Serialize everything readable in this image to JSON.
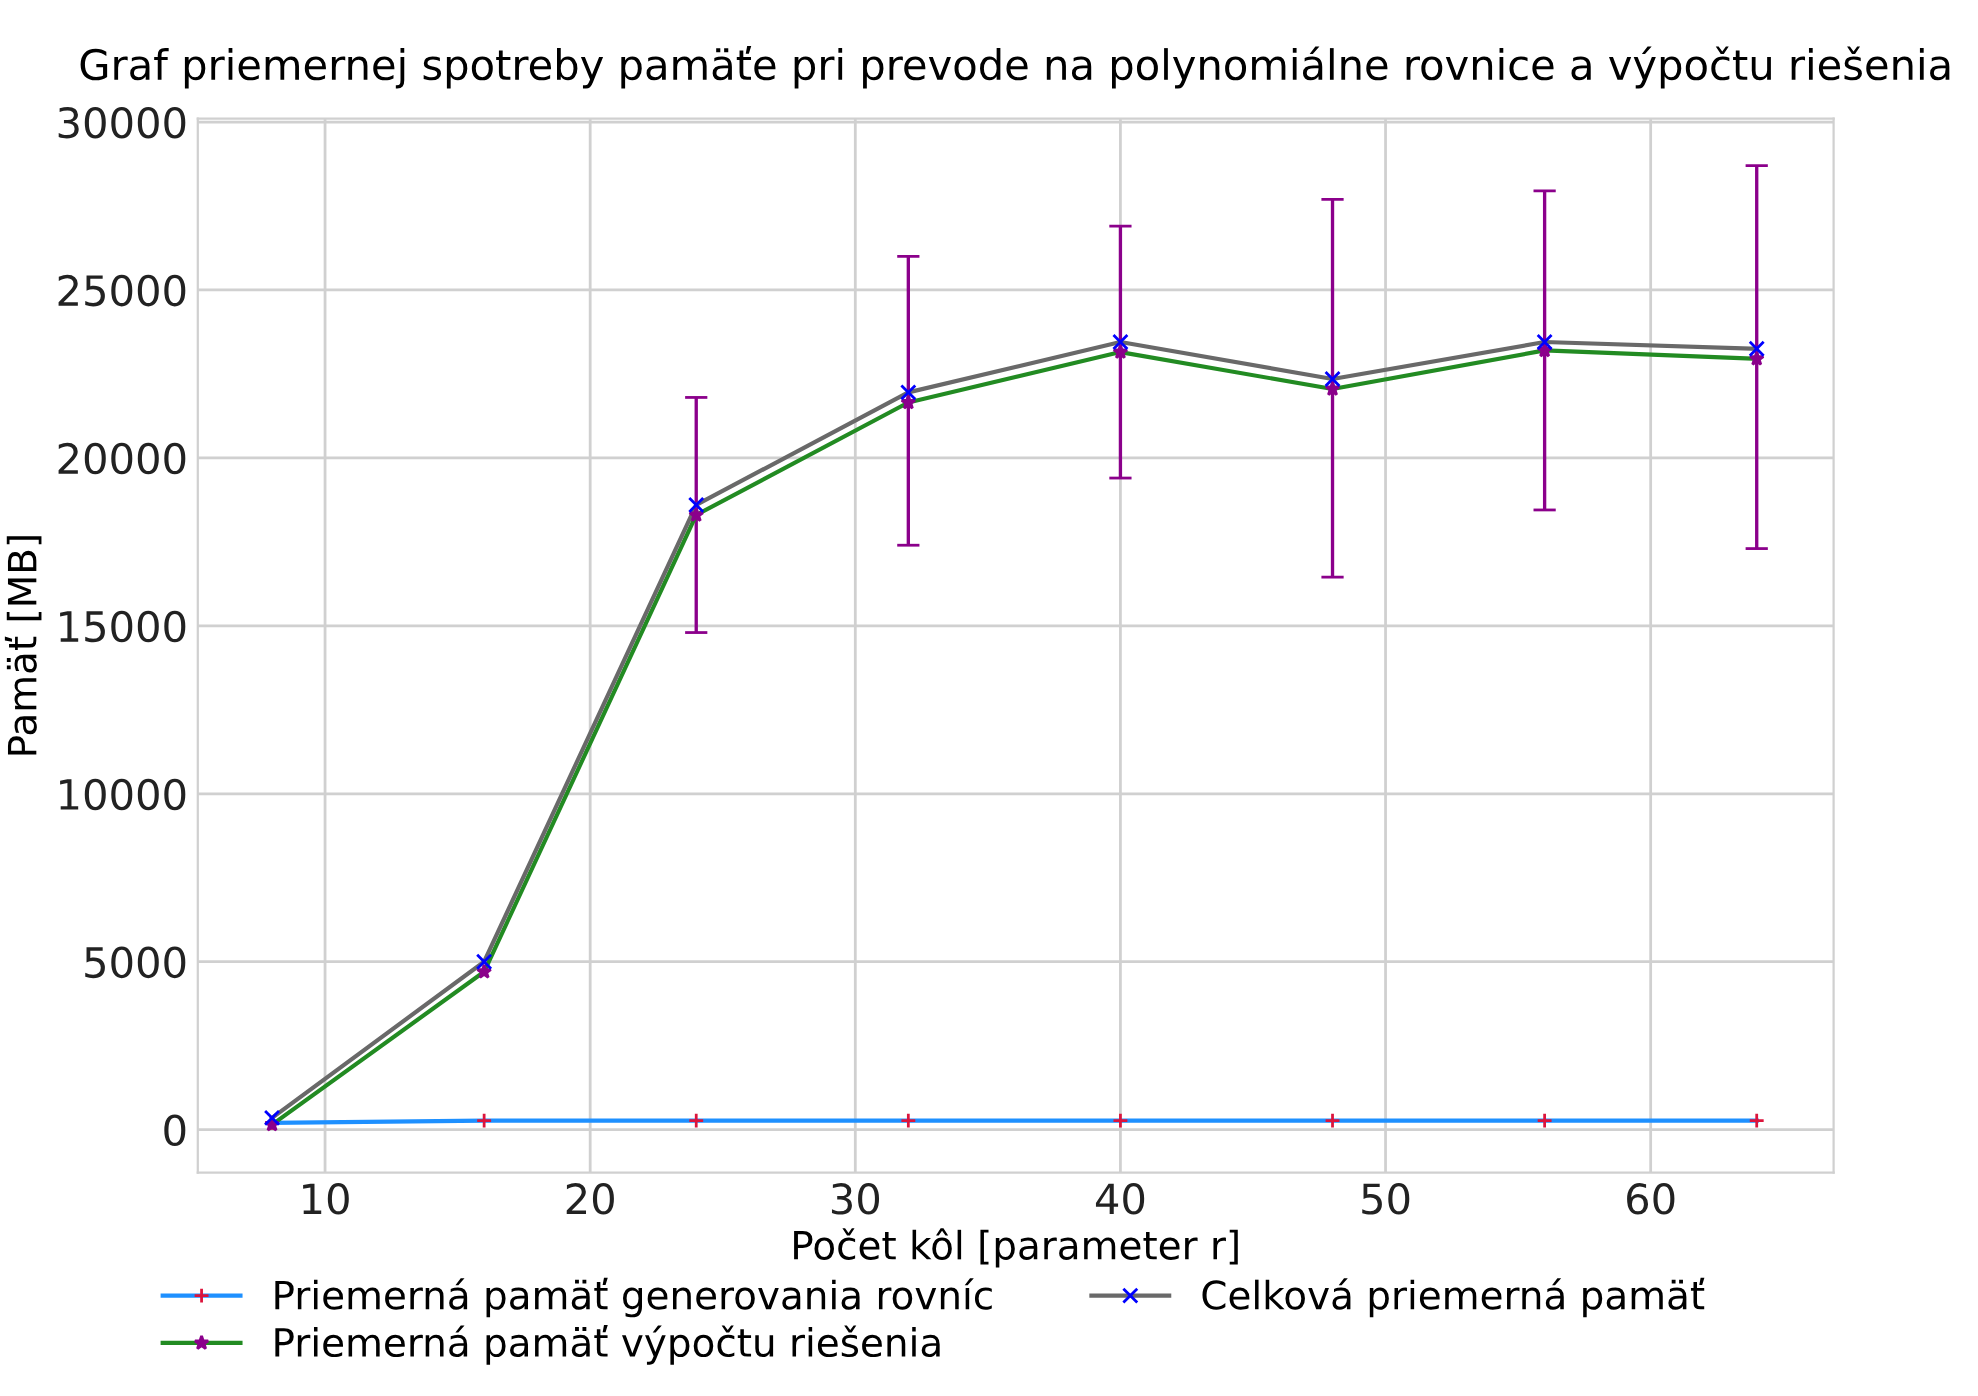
{
  "chart_data": {
    "type": "line",
    "title": "Graf priemernej spotreby pamäťe pri prevode na polynomiálne rovnice a výpočtu riešenia",
    "xlabel": "Počet kôl [parameter r]",
    "ylabel": "Pamäť [MB]",
    "x": [
      8,
      16,
      24,
      32,
      40,
      48,
      56,
      64
    ],
    "series": [
      {
        "name": "Priemerná pamäť generovania rovníc",
        "color": "#1e90ff",
        "marker": "cross",
        "colors": [
          "#dc143c",
          "#dc143c",
          "#dc143c",
          "#dc143c",
          "#dc143c",
          "#dc143c",
          "#dc143c",
          "#dc143c"
        ],
        "values": [
          200,
          270,
          270,
          270,
          270,
          270,
          270,
          270
        ]
      },
      {
        "name": "Priemerná pamäť výpočtu riešenia",
        "color": "#228b22",
        "marker": "star",
        "colors": [
          "#8b008b",
          "#8b008b",
          "#8b008b",
          "#8b008b",
          "#8b008b",
          "#8b008b",
          "#8b008b",
          "#8b008b"
        ],
        "values": [
          150,
          4700,
          18300,
          21650,
          23150,
          22050,
          23200,
          22950
        ],
        "errors": [
          null,
          null,
          [
            14800,
            21800
          ],
          [
            17400,
            26000
          ],
          [
            19400,
            26900
          ],
          [
            16450,
            27700
          ],
          [
            18450,
            27950
          ],
          [
            17300,
            28700
          ]
        ]
      },
      {
        "name": "Celková priemerná pamäť",
        "color": "#696969",
        "marker": "x",
        "colors": [
          "#0000ff",
          "#0000ff",
          "#0000ff",
          "#0000ff",
          "#0000ff",
          "#0000ff",
          "#0000ff",
          "#0000ff"
        ],
        "values": [
          350,
          5000,
          18600,
          21950,
          23450,
          22350,
          23450,
          23250
        ]
      }
    ],
    "xlim": [
      5.2,
      66.9
    ],
    "ylim": [
      -1280,
      30100
    ],
    "xticks": [
      10,
      20,
      30,
      40,
      50,
      60
    ],
    "yticks": [
      0,
      5000,
      10000,
      15000,
      20000,
      25000,
      30000
    ],
    "grid": true,
    "legend": "bottom"
  }
}
